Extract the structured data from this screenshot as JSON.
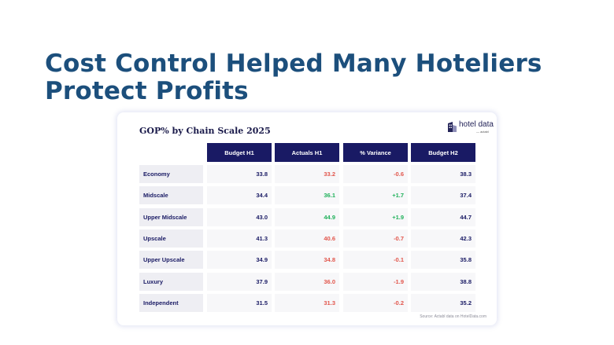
{
  "headline": {
    "line1": "Cost Control Helped Many Hoteliers",
    "line2": "Protect Profits"
  },
  "card": {
    "title": "GOP% by Chain Scale 2025",
    "logo_text": "hotel data",
    "logo_sub": "— actabl",
    "source": "Source: Actabl data on HotelData.com"
  },
  "colors": {
    "title": "#1c4f7c",
    "header_bg": "#191a64",
    "negative": "#e2564c",
    "positive": "#1fb15a"
  },
  "table": {
    "headers": [
      "Budget H1",
      "Actuals H1",
      "% Variance",
      "Budget H2"
    ],
    "rows": [
      {
        "label": "Economy",
        "budget_h1": "33.8",
        "actuals_h1": "33.2",
        "variance": "-0.6",
        "budget_h2": "38.3"
      },
      {
        "label": "Midscale",
        "budget_h1": "34.4",
        "actuals_h1": "36.1",
        "variance": "+1.7",
        "budget_h2": "37.4"
      },
      {
        "label": "Upper Midscale",
        "budget_h1": "43.0",
        "actuals_h1": "44.9",
        "variance": "+1.9",
        "budget_h2": "44.7"
      },
      {
        "label": "Upscale",
        "budget_h1": "41.3",
        "actuals_h1": "40.6",
        "variance": "-0.7",
        "budget_h2": "42.3"
      },
      {
        "label": "Upper Upscale",
        "budget_h1": "34.9",
        "actuals_h1": "34.8",
        "variance": "-0.1",
        "budget_h2": "35.8"
      },
      {
        "label": "Luxury",
        "budget_h1": "37.9",
        "actuals_h1": "36.0",
        "variance": "-1.9",
        "budget_h2": "38.8"
      },
      {
        "label": "Independent",
        "budget_h1": "31.5",
        "actuals_h1": "31.3",
        "variance": "-0.2",
        "budget_h2": "35.2"
      }
    ]
  }
}
